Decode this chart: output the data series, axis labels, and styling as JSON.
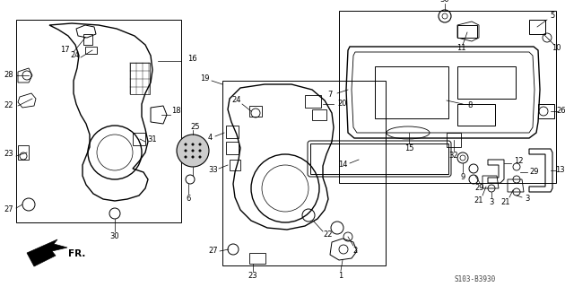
{
  "bg_color": "#ffffff",
  "diagram_code": "S103-B3930",
  "fig_width": 6.3,
  "fig_height": 3.2,
  "dpi": 100
}
